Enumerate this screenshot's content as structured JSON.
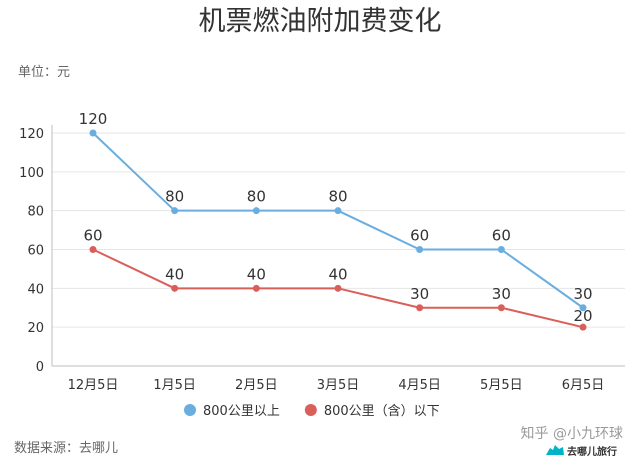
{
  "chart_data": {
    "type": "line",
    "title": "机票燃油附加费变化",
    "unit_label": "单位：元",
    "categories": [
      "12月5日",
      "1月5日",
      "2月5日",
      "3月5日",
      "4月5日",
      "5月5日",
      "6月5日"
    ],
    "ylim": [
      0,
      120
    ],
    "yticks": [
      0,
      20,
      40,
      60,
      80,
      100,
      120
    ],
    "grid": true,
    "legend_position": "bottom",
    "series": [
      {
        "name": "800公里以上",
        "color": "#6aaee0",
        "values": [
          120,
          80,
          80,
          80,
          60,
          60,
          30
        ]
      },
      {
        "name": "800公里（含）以下",
        "color": "#d9605a",
        "values": [
          60,
          40,
          40,
          40,
          30,
          30,
          20
        ]
      }
    ]
  },
  "footer": {
    "source": "数据来源：去哪儿",
    "watermark": "知乎 @小九环球",
    "brand": "去哪儿旅行",
    "brand_color": "#00b4c8"
  }
}
